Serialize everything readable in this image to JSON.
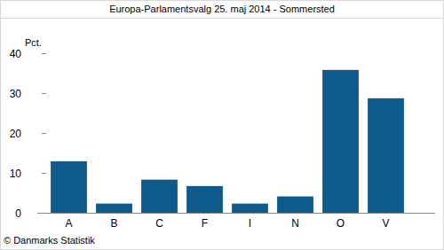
{
  "chart_data": {
    "type": "bar",
    "title": "Europa-Parlamentsvalg 25. maj 2014 - Sommersted",
    "y_label": "Pct.",
    "source": "© Danmarks Statistik",
    "categories": [
      "A",
      "B",
      "C",
      "F",
      "I",
      "N",
      "O",
      "V"
    ],
    "values": [
      12.9,
      2.3,
      8.3,
      6.7,
      2.3,
      4.1,
      35.8,
      28.7
    ],
    "color": "#0e5a8a",
    "ylim": [
      0,
      40
    ],
    "yticks": [
      0,
      10,
      20,
      30,
      40
    ],
    "grid": false
  }
}
